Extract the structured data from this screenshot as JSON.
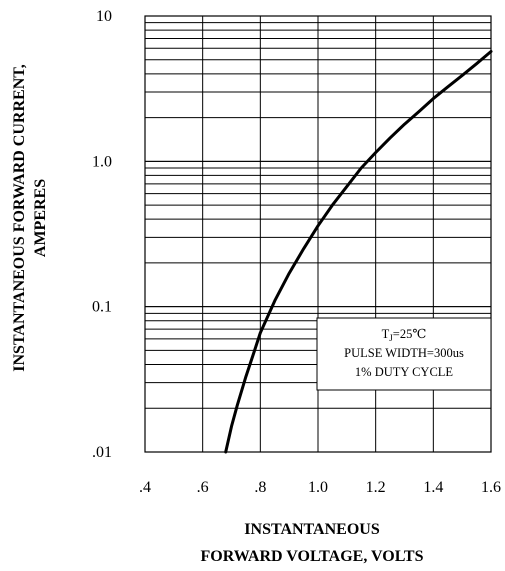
{
  "chart_data": {
    "type": "line",
    "x_axis": {
      "label_lines": [
        "INSTANTANEOUS",
        "FORWARD VOLTAGE, VOLTS"
      ],
      "range": [
        0.4,
        1.6
      ],
      "ticks": [
        0.4,
        0.6,
        0.8,
        1.0,
        1.2,
        1.4,
        1.6
      ],
      "tick_labels": [
        ".4",
        ".6",
        ".8",
        "1.0",
        "1.2",
        "1.4",
        "1.6"
      ]
    },
    "y_axis": {
      "label_lines": [
        "INSTANTANEOUS FORWARD CURRENT,",
        "AMPERES"
      ],
      "scale": "log",
      "range": [
        0.01,
        10
      ],
      "ticks": [
        0.01,
        0.1,
        1,
        10
      ],
      "tick_labels": [
        ".01",
        "0.1",
        "1.0",
        "10"
      ]
    },
    "grid": true,
    "annotation": {
      "tj_symbol": "T",
      "tj_subscript": "J",
      "tj_value": "=25℃",
      "line2": "PULSE WIDTH=300us",
      "line3": "1% DUTY CYCLE",
      "placement": "bottom-right"
    },
    "series": [
      {
        "x": [
          0.68,
          0.7,
          0.72,
          0.75,
          0.78,
          0.8,
          0.85,
          0.9,
          0.95,
          1.0,
          1.05,
          1.1,
          1.15,
          1.2,
          1.25,
          1.3,
          1.35,
          1.4,
          1.45,
          1.5,
          1.55,
          1.6
        ],
        "y": [
          0.01,
          0.015,
          0.021,
          0.033,
          0.05,
          0.066,
          0.11,
          0.17,
          0.25,
          0.36,
          0.5,
          0.67,
          0.9,
          1.15,
          1.45,
          1.8,
          2.2,
          2.7,
          3.25,
          3.9,
          4.7,
          5.7
        ]
      }
    ]
  }
}
